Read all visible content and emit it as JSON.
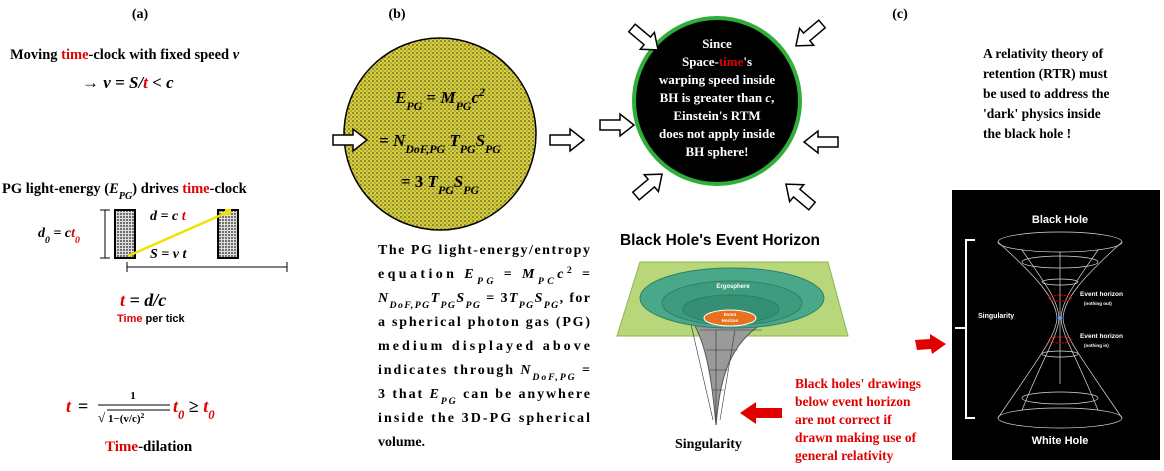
{
  "panel_labels": [
    "(a)",
    "(b)",
    "(c)"
  ],
  "panel_a": {
    "heading": [
      "Moving ",
      "time",
      "-clock with fixed speed ",
      "v"
    ],
    "speed": [
      "→  ",
      "v",
      " = ",
      "S/",
      "t",
      "  <  ",
      "c"
    ],
    "driver": [
      "PG light-energy (",
      "E",
      "PG",
      ") drives ",
      "time",
      "-clock"
    ],
    "clock": {
      "height": [
        "d",
        "0",
        " = c",
        "t",
        "0"
      ],
      "diagonal": [
        "d",
        " = c ",
        "t"
      ],
      "base": [
        "S",
        " = ",
        "v t"
      ]
    },
    "tick": [
      "t",
      " = ",
      "d/c"
    ],
    "tick_caption": [
      "Time",
      " per tick"
    ],
    "dilation": [
      "t",
      " = ",
      "1",
      "√",
      "1−(v/c)",
      "2",
      "t",
      "0",
      " ≥ ",
      "t",
      "0"
    ],
    "dilation_caption": [
      "Time",
      "-dilation"
    ]
  },
  "panel_b": {
    "circle_formulas": [
      [
        "E",
        "PG",
        " = ",
        "M",
        "PG",
        "c",
        "2"
      ],
      [
        "= ",
        "N",
        "DoF,PG",
        " T",
        "PG",
        "S",
        "PG"
      ],
      [
        "= 3 ",
        "T",
        "PG",
        "S",
        "PG"
      ]
    ],
    "paragraph": [
      [
        "The PG light-energy/entropy"
      ],
      [
        "equation ",
        "E",
        "PG",
        " = ",
        "M",
        "PC",
        "c",
        "2",
        " ="
      ],
      [
        "N",
        "DoF,PG",
        "T",
        "PG",
        "S",
        "PG",
        " = 3",
        "T",
        "PG",
        "S",
        "PG",
        ", for"
      ],
      [
        "a spherical photon gas (PG)"
      ],
      [
        "medium displayed above"
      ],
      [
        "indicates through ",
        "N",
        "DoF,PG",
        " ="
      ],
      [
        "3 that ",
        "E",
        "PG",
        " can be anywhere"
      ],
      [
        "inside the 3D-PG spherical"
      ],
      [
        "volume."
      ]
    ]
  },
  "panel_c": {
    "bh_circle": [
      [
        "Since"
      ],
      [
        "Space-",
        "time",
        "'s"
      ],
      [
        "warping speed inside"
      ],
      [
        "BH is greater than ",
        "c",
        ","
      ],
      [
        "Einstein's RTM"
      ],
      [
        "does not apply inside"
      ],
      [
        "BH sphere!"
      ]
    ],
    "horizon_title": "Black Hole's Event Horizon",
    "ergosphere": "Ergosphere",
    "event_horizon": [
      "Event",
      "Horizon"
    ],
    "singularity": "Singularity",
    "warning": [
      "Black holes' drawings",
      "below event horizon",
      "are not correct if",
      "drawn making use of",
      "general relativity"
    ],
    "rtr_note": [
      "A relativity theory of",
      "retention (RTR) must",
      "be used to address the",
      "'dark' physics inside",
      "the black hole !"
    ],
    "wormhole": {
      "top": "Black Hole",
      "bottom": "White Hole",
      "singularity": "Singularity",
      "horizon_out": [
        "Event horizon",
        "(nothing out)"
      ],
      "horizon_in": [
        "Event horizon",
        "(nothing in)"
      ]
    }
  }
}
